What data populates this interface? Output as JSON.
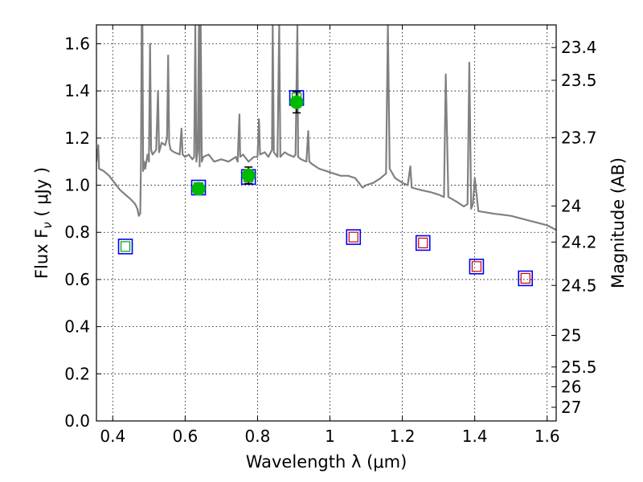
{
  "chart_data": {
    "type": "scatter",
    "xlabel": "Wavelength  λ (μm)",
    "ylabel": "Flux  F",
    "ylabel_sub": "ν",
    "ylabel_unit": "  ( μJy )",
    "ylabel_right": "Magnitude (AB)",
    "xlim": [
      0.355,
      1.625
    ],
    "ylim": [
      0.0,
      1.68
    ],
    "grid": true,
    "x_ticks": [
      {
        "value": 0.4,
        "label": "0.4"
      },
      {
        "value": 0.6,
        "label": "0.6"
      },
      {
        "value": 0.8,
        "label": "0.8"
      },
      {
        "value": 1.0,
        "label": "1"
      },
      {
        "value": 1.2,
        "label": "1.2"
      },
      {
        "value": 1.4,
        "label": "1.4"
      },
      {
        "value": 1.6,
        "label": "1.6"
      }
    ],
    "y_ticks": [
      {
        "value": 0.0,
        "label": "0.0"
      },
      {
        "value": 0.2,
        "label": "0.2"
      },
      {
        "value": 0.4,
        "label": "0.4"
      },
      {
        "value": 0.6,
        "label": "0.6"
      },
      {
        "value": 0.8,
        "label": "0.8"
      },
      {
        "value": 1.0,
        "label": "1.0"
      },
      {
        "value": 1.2,
        "label": "1.2"
      },
      {
        "value": 1.4,
        "label": "1.4"
      },
      {
        "value": 1.6,
        "label": "1.6"
      }
    ],
    "right_ticks": [
      {
        "flux": 1.584,
        "label": "23.4"
      },
      {
        "flux": 1.445,
        "label": "23.5"
      },
      {
        "flux": 1.202,
        "label": "23.7"
      },
      {
        "flux": 0.912,
        "label": "24"
      },
      {
        "flux": 0.759,
        "label": "24.2"
      },
      {
        "flux": 0.575,
        "label": "24.5"
      },
      {
        "flux": 0.363,
        "label": "25"
      },
      {
        "flux": 0.229,
        "label": "25.5"
      },
      {
        "flux": 0.145,
        "label": "26"
      },
      {
        "flux": 0.058,
        "label": "27"
      }
    ],
    "colors": {
      "spectrum": "#808080",
      "box_edge": "#0000ff",
      "inner_box_optical": "#00aa00",
      "inner_box_nir": "#cc0000",
      "filled_marker": "#00bb00",
      "errorbar": "#000000"
    },
    "series": [
      {
        "style": "boxes",
        "points": [
          {
            "x": 0.435,
            "y": 0.74,
            "inner": "green"
          },
          {
            "x": 0.637,
            "y": 0.99,
            "inner": "green"
          },
          {
            "x": 0.775,
            "y": 1.035,
            "inner": "green"
          },
          {
            "x": 0.908,
            "y": 1.37,
            "inner": "green"
          },
          {
            "x": 1.065,
            "y": 0.78,
            "inner": "red"
          },
          {
            "x": 1.257,
            "y": 0.755,
            "inner": "red"
          },
          {
            "x": 1.405,
            "y": 0.655,
            "inner": "red"
          },
          {
            "x": 1.54,
            "y": 0.605,
            "inner": "red"
          }
        ]
      },
      {
        "style": "filled-circle-errorbar",
        "points": [
          {
            "x": 0.637,
            "y": 0.985,
            "yerr": 0.018
          },
          {
            "x": 0.775,
            "y": 1.042,
            "yerr": 0.035
          },
          {
            "x": 0.908,
            "y": 1.352,
            "yerr": 0.045
          }
        ]
      },
      {
        "style": "spectrum-line",
        "points": [
          [
            0.355,
            1.1
          ],
          [
            0.36,
            1.17
          ],
          [
            0.362,
            1.07
          ],
          [
            0.375,
            1.06
          ],
          [
            0.39,
            1.04
          ],
          [
            0.405,
            1.01
          ],
          [
            0.42,
            0.98
          ],
          [
            0.435,
            0.96
          ],
          [
            0.45,
            0.94
          ],
          [
            0.462,
            0.92
          ],
          [
            0.468,
            0.9
          ],
          [
            0.472,
            0.87
          ],
          [
            0.476,
            0.88
          ],
          [
            0.478,
            1.1
          ],
          [
            0.48,
            1.68
          ],
          [
            0.482,
            1.68
          ],
          [
            0.484,
            1.06
          ],
          [
            0.487,
            1.1
          ],
          [
            0.49,
            1.07
          ],
          [
            0.496,
            1.13
          ],
          [
            0.5,
            1.1
          ],
          [
            0.503,
            1.6
          ],
          [
            0.506,
            1.15
          ],
          [
            0.51,
            1.13
          ],
          [
            0.52,
            1.15
          ],
          [
            0.525,
            1.4
          ],
          [
            0.528,
            1.14
          ],
          [
            0.535,
            1.18
          ],
          [
            0.545,
            1.17
          ],
          [
            0.55,
            1.2
          ],
          [
            0.553,
            1.55
          ],
          [
            0.556,
            1.18
          ],
          [
            0.56,
            1.15
          ],
          [
            0.57,
            1.14
          ],
          [
            0.585,
            1.13
          ],
          [
            0.59,
            1.24
          ],
          [
            0.593,
            1.13
          ],
          [
            0.6,
            1.12
          ],
          [
            0.61,
            1.13
          ],
          [
            0.62,
            1.11
          ],
          [
            0.625,
            1.12
          ],
          [
            0.628,
            1.68
          ],
          [
            0.631,
            1.1
          ],
          [
            0.635,
            1.15
          ],
          [
            0.638,
            1.68
          ],
          [
            0.64,
            1.08
          ],
          [
            0.643,
            1.68
          ],
          [
            0.646,
            1.1
          ],
          [
            0.65,
            1.12
          ],
          [
            0.665,
            1.13
          ],
          [
            0.68,
            1.1
          ],
          [
            0.7,
            1.11
          ],
          [
            0.72,
            1.1
          ],
          [
            0.74,
            1.12
          ],
          [
            0.745,
            1.1
          ],
          [
            0.75,
            1.3
          ],
          [
            0.752,
            1.12
          ],
          [
            0.76,
            1.13
          ],
          [
            0.775,
            1.1
          ],
          [
            0.79,
            1.12
          ],
          [
            0.8,
            1.12
          ],
          [
            0.804,
            1.28
          ],
          [
            0.807,
            1.13
          ],
          [
            0.82,
            1.14
          ],
          [
            0.83,
            1.12
          ],
          [
            0.84,
            1.15
          ],
          [
            0.842,
            1.68
          ],
          [
            0.845,
            1.14
          ],
          [
            0.855,
            1.12
          ],
          [
            0.86,
            1.68
          ],
          [
            0.863,
            1.12
          ],
          [
            0.875,
            1.14
          ],
          [
            0.885,
            1.13
          ],
          [
            0.9,
            1.12
          ],
          [
            0.905,
            1.13
          ],
          [
            0.91,
            1.68
          ],
          [
            0.912,
            1.12
          ],
          [
            0.92,
            1.11
          ],
          [
            0.935,
            1.1
          ],
          [
            0.94,
            1.23
          ],
          [
            0.943,
            1.1
          ],
          [
            0.95,
            1.09
          ],
          [
            0.97,
            1.07
          ],
          [
            0.99,
            1.06
          ],
          [
            1.01,
            1.05
          ],
          [
            1.03,
            1.04
          ],
          [
            1.05,
            1.04
          ],
          [
            1.07,
            1.03
          ],
          [
            1.08,
            1.01
          ],
          [
            1.09,
            0.99
          ],
          [
            1.1,
            1.0
          ],
          [
            1.12,
            1.01
          ],
          [
            1.14,
            1.03
          ],
          [
            1.155,
            1.05
          ],
          [
            1.16,
            1.68
          ],
          [
            1.165,
            1.07
          ],
          [
            1.18,
            1.03
          ],
          [
            1.2,
            1.01
          ],
          [
            1.215,
            1.0
          ],
          [
            1.222,
            1.08
          ],
          [
            1.226,
            0.99
          ],
          [
            1.25,
            0.98
          ],
          [
            1.28,
            0.97
          ],
          [
            1.3,
            0.96
          ],
          [
            1.315,
            0.95
          ],
          [
            1.32,
            1.47
          ],
          [
            1.327,
            0.95
          ],
          [
            1.35,
            0.93
          ],
          [
            1.37,
            0.91
          ],
          [
            1.38,
            0.92
          ],
          [
            1.385,
            1.52
          ],
          [
            1.39,
            0.9
          ],
          [
            1.395,
            0.92
          ],
          [
            1.4,
            1.03
          ],
          [
            1.41,
            0.89
          ],
          [
            1.45,
            0.88
          ],
          [
            1.5,
            0.87
          ],
          [
            1.55,
            0.85
          ],
          [
            1.6,
            0.83
          ],
          [
            1.625,
            0.81
          ]
        ]
      }
    ]
  }
}
